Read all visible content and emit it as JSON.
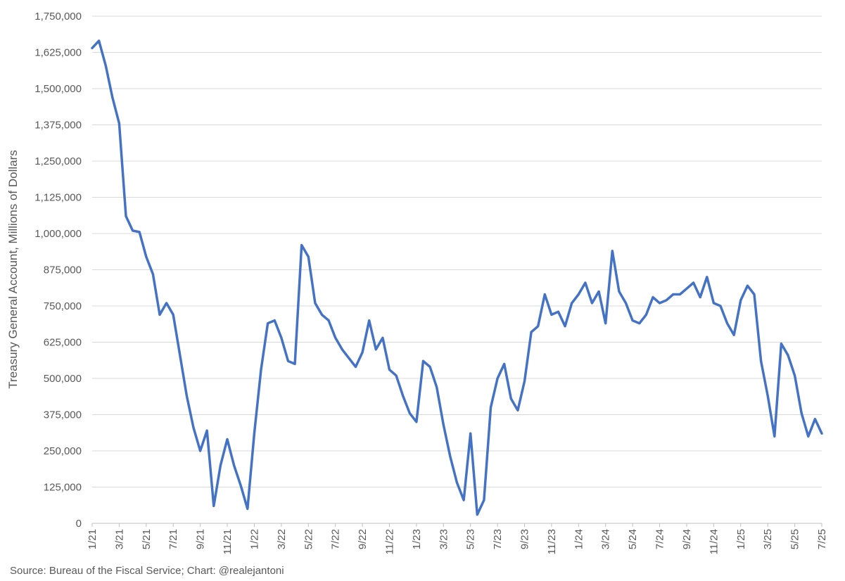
{
  "chart_data": {
    "type": "line",
    "title": "",
    "ylabel": "Treasury General Account, Millions of Dollars",
    "xlabel": "",
    "ylim": [
      0,
      1750000
    ],
    "y_ticks": [
      0,
      125000,
      250000,
      375000,
      500000,
      625000,
      750000,
      875000,
      1000000,
      1125000,
      1250000,
      1375000,
      1500000,
      1625000,
      1750000
    ],
    "y_tick_labels": [
      "0",
      "125,000",
      "250,000",
      "375,000",
      "500,000",
      "625,000",
      "750,000",
      "875,000",
      "1,000,000",
      "1,125,000",
      "1,250,000",
      "1,375,000",
      "1,500,000",
      "1,625,000",
      "1,750,000"
    ],
    "x_tick_labels": [
      "1/21",
      "3/21",
      "5/21",
      "7/21",
      "9/21",
      "11/21",
      "1/22",
      "3/22",
      "5/22",
      "7/22",
      "9/22",
      "11/22",
      "1/23",
      "3/23",
      "5/23",
      "7/23",
      "9/23",
      "11/23",
      "1/24",
      "3/24",
      "5/24",
      "7/24",
      "9/24",
      "11/24",
      "1/25",
      "3/25",
      "5/25",
      "7/25"
    ],
    "x_range": [
      "2021-01",
      "2025-07"
    ],
    "grid": true,
    "legend": "none",
    "color": "#4472C4",
    "series": [
      {
        "x": [
          "2021-01",
          "2021-01",
          "2021-02",
          "2021-02",
          "2021-03",
          "2021-03",
          "2021-04",
          "2021-04",
          "2021-05",
          "2021-05",
          "2021-06",
          "2021-06",
          "2021-07",
          "2021-07",
          "2021-08",
          "2021-08",
          "2021-09",
          "2021-09",
          "2021-10",
          "2021-10",
          "2021-11",
          "2021-11",
          "2021-12",
          "2021-12",
          "2022-01",
          "2022-01",
          "2022-02",
          "2022-02",
          "2022-03",
          "2022-03",
          "2022-04",
          "2022-04",
          "2022-05",
          "2022-05",
          "2022-06",
          "2022-06",
          "2022-07",
          "2022-07",
          "2022-08",
          "2022-08",
          "2022-09",
          "2022-09",
          "2022-10",
          "2022-10",
          "2022-11",
          "2022-11",
          "2022-12",
          "2022-12",
          "2023-01",
          "2023-01",
          "2023-02",
          "2023-02",
          "2023-03",
          "2023-03",
          "2023-04",
          "2023-04",
          "2023-05",
          "2023-05",
          "2023-06",
          "2023-06",
          "2023-07",
          "2023-07",
          "2023-08",
          "2023-08",
          "2023-09",
          "2023-09",
          "2023-10",
          "2023-10",
          "2023-11",
          "2023-11",
          "2023-12",
          "2023-12",
          "2024-01",
          "2024-01",
          "2024-02",
          "2024-02",
          "2024-03",
          "2024-03",
          "2024-04",
          "2024-04",
          "2024-05",
          "2024-05",
          "2024-06",
          "2024-06",
          "2024-07",
          "2024-07",
          "2024-08",
          "2024-08",
          "2024-09",
          "2024-09",
          "2024-10",
          "2024-10",
          "2024-11",
          "2024-11",
          "2024-12",
          "2024-12",
          "2025-01",
          "2025-01",
          "2025-02",
          "2025-02",
          "2025-03",
          "2025-03",
          "2025-04",
          "2025-04",
          "2025-05",
          "2025-05",
          "2025-06",
          "2025-06",
          "2025-07"
        ],
        "values": [
          1640000,
          1665000,
          1580000,
          1470000,
          1380000,
          1060000,
          1010000,
          1005000,
          920000,
          860000,
          720000,
          760000,
          720000,
          580000,
          440000,
          330000,
          250000,
          320000,
          60000,
          200000,
          290000,
          200000,
          130000,
          50000,
          310000,
          530000,
          690000,
          700000,
          640000,
          560000,
          550000,
          960000,
          920000,
          760000,
          720000,
          700000,
          640000,
          600000,
          570000,
          540000,
          590000,
          700000,
          600000,
          640000,
          530000,
          510000,
          440000,
          380000,
          350000,
          560000,
          540000,
          470000,
          340000,
          230000,
          140000,
          80000,
          310000,
          30000,
          80000,
          400000,
          500000,
          550000,
          430000,
          390000,
          490000,
          660000,
          680000,
          790000,
          720000,
          730000,
          680000,
          760000,
          790000,
          830000,
          760000,
          800000,
          690000,
          940000,
          800000,
          760000,
          700000,
          690000,
          720000,
          780000,
          760000,
          770000,
          790000,
          790000,
          810000,
          830000,
          780000,
          850000,
          760000,
          750000,
          690000,
          650000,
          770000,
          820000,
          790000,
          560000,
          440000,
          300000,
          620000,
          580000,
          510000,
          380000,
          300000,
          360000,
          310000
        ]
      }
    ]
  },
  "source_text": "Source: Bureau of the Fiscal Service; Chart: @realejantoni"
}
